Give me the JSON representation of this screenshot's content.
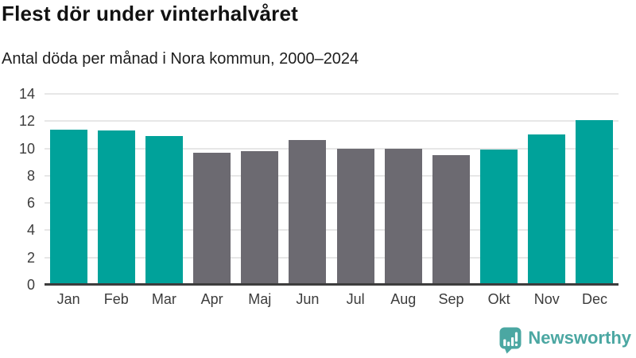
{
  "header": {
    "title": "Flest dör under vinterhalvåret",
    "subtitle": "Antal döda per månad i Nora kommun, 2000–2024"
  },
  "chart_data": {
    "type": "bar",
    "title": "Flest dör under vinterhalvåret",
    "subtitle": "Antal döda per månad i Nora kommun, 2000–2024",
    "categories": [
      "Jan",
      "Feb",
      "Mar",
      "Apr",
      "Maj",
      "Jun",
      "Jul",
      "Aug",
      "Sep",
      "Okt",
      "Nov",
      "Dec"
    ],
    "values": [
      11.4,
      11.3,
      10.9,
      9.7,
      9.8,
      10.6,
      10.0,
      10.0,
      9.5,
      9.9,
      11.0,
      12.1
    ],
    "bar_color_keys": [
      "winter",
      "winter",
      "winter",
      "summer",
      "summer",
      "summer",
      "summer",
      "summer",
      "summer",
      "winter",
      "winter",
      "winter"
    ],
    "palette": {
      "winter": "#00a29a",
      "summer": "#6c6a71"
    },
    "xlabel": "",
    "ylabel": "",
    "ylim": [
      0,
      14
    ],
    "yticks": [
      0,
      2,
      4,
      6,
      8,
      10,
      12,
      14
    ],
    "grid": "horizontal-only",
    "legend": "none"
  },
  "footer": {
    "brand": "Newsworthy",
    "brand_color": "#4ba7a2",
    "logo_icon": "newsworthy-speech-bubble-bar-chart-icon"
  },
  "style_colors": {
    "grid_line": "#e7e7e7",
    "axis_line": "#3d3d3d",
    "tick_label": "#3c3c3c",
    "title_text": "#121212"
  }
}
